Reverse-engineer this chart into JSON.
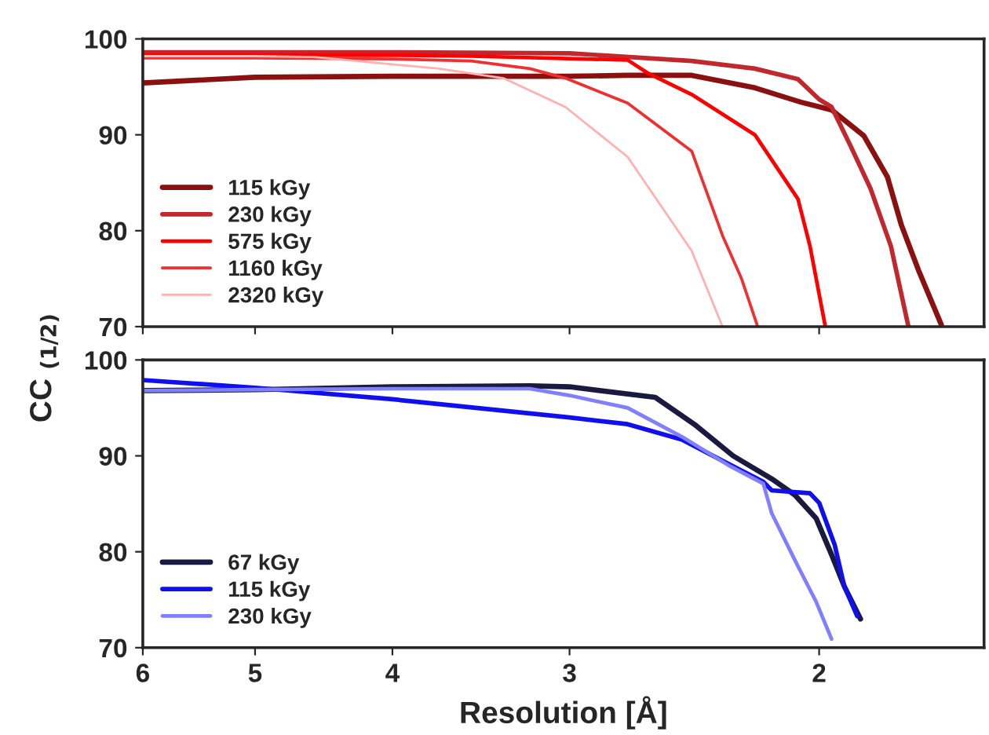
{
  "chart_data": [
    {
      "type": "line",
      "ylabel": "CC $_{(1/2)}$",
      "log": "x",
      "xlim": [
        6,
        1.53
      ],
      "xticks": [
        6,
        5,
        4,
        3,
        2
      ],
      "ylim": [
        70,
        100
      ],
      "yticks": [
        70,
        80,
        90,
        100
      ],
      "tick_labels": "y",
      "legend": "bottom left",
      "grid": false,
      "line_style": "solid",
      "series": [
        {
          "name": "115 kGy",
          "color": "#8b1010",
          "x": [
            6,
            5,
            4,
            3,
            2.73,
            2.46,
            2.22,
            2.06,
            1.96,
            1.86,
            1.79,
            1.75,
            1.7,
            1.64
          ],
          "values": [
            95.4,
            96.0,
            96.1,
            96.1,
            96.2,
            96.2,
            94.9,
            93.4,
            92.6,
            89.9,
            85.6,
            80.6,
            75.7,
            70.2
          ]
        },
        {
          "name": "230 kGy",
          "color": "#c0282d",
          "x": [
            6,
            5,
            4,
            3,
            2.46,
            2.22,
            2.07,
            2.0,
            1.96,
            1.9,
            1.84,
            1.78,
            1.73
          ],
          "values": [
            98.6,
            98.6,
            98.6,
            98.5,
            97.7,
            96.9,
            95.8,
            93.7,
            92.9,
            88.8,
            84.4,
            78.4,
            70.0
          ]
        },
        {
          "name": "575 kGy",
          "color": "#ff0000",
          "x": [
            6,
            5,
            4,
            3.52,
            2.73,
            2.64,
            2.46,
            2.22,
            2.07,
            2.03,
            1.98
          ],
          "values": [
            98.3,
            98.3,
            98.3,
            98.2,
            97.8,
            96.4,
            94.2,
            90.0,
            83.3,
            78.4,
            70.0
          ]
        },
        {
          "name": "1160 kGy",
          "color": "#f03030",
          "x": [
            6,
            5,
            4,
            3.52,
            3.2,
            3.02,
            2.73,
            2.46,
            2.34,
            2.27,
            2.21
          ],
          "values": [
            98.0,
            98.0,
            97.9,
            97.7,
            96.9,
            95.9,
            93.3,
            88.3,
            79.5,
            75.1,
            70.0
          ]
        },
        {
          "name": "2320 kGy",
          "color": "#ffb0b0",
          "x": [
            6,
            5,
            4.54,
            3.71,
            3.34,
            3.02,
            2.73,
            2.46,
            2.34
          ],
          "values": [
            98.2,
            98.2,
            98.1,
            96.9,
            95.9,
            92.9,
            87.7,
            77.9,
            70.0
          ]
        }
      ]
    },
    {
      "type": "line",
      "xlabel": "Resolution [Å]",
      "log": "x",
      "xlim": [
        6,
        1.53
      ],
      "xticks": [
        6,
        5,
        4,
        3,
        2
      ],
      "ylim": [
        70,
        100
      ],
      "yticks": [
        70,
        80,
        90,
        100
      ],
      "legend": "bottom left",
      "grid": false,
      "line_style": "solid",
      "series": [
        {
          "name": "67 kGy",
          "color": "#1a1a40",
          "x": [
            6,
            5,
            4,
            3.2,
            3,
            2.61,
            2.45,
            2.3,
            2.16,
            2.08,
            2.01,
            1.96,
            1.92,
            1.87
          ],
          "values": [
            96.8,
            96.9,
            97.2,
            97.3,
            97.2,
            96.1,
            93.3,
            90.0,
            87.6,
            85.9,
            83.5,
            79.7,
            76.4,
            73.0
          ]
        },
        {
          "name": "115 kGy",
          "color": "#1010ee",
          "x": [
            6,
            5,
            4,
            3,
            2.73,
            2.5,
            2.32,
            2.19,
            2.16,
            2.03,
            2.0,
            1.95,
            1.92,
            1.88
          ],
          "values": [
            97.9,
            97.1,
            95.9,
            94.0,
            93.3,
            91.7,
            89.2,
            87.3,
            86.4,
            86.1,
            85.1,
            80.7,
            76.4,
            73.3
          ]
        },
        {
          "name": "230 kGy",
          "color": "#8080ff",
          "x": [
            6,
            5,
            4,
            3.2,
            3,
            2.73,
            2.5,
            2.31,
            2.19,
            2.16,
            2.08,
            2.01,
            1.96
          ],
          "values": [
            96.8,
            96.9,
            97.0,
            97.0,
            96.3,
            95.0,
            92.0,
            88.9,
            87.1,
            84.0,
            79.1,
            74.8,
            70.9
          ]
        }
      ]
    }
  ]
}
